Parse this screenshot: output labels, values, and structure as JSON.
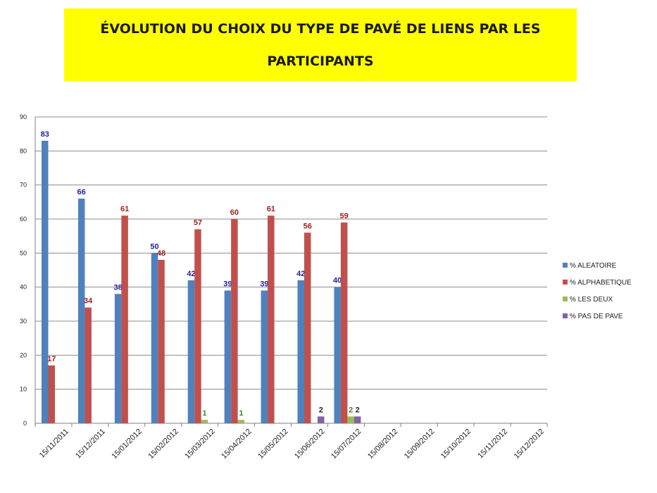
{
  "chart_data": {
    "type": "bar",
    "title": "ÉVOLUTION DU CHOIX DU TYPE DE PAVÉ DE LIENS PAR LES PARTICIPANTS",
    "categories": [
      "15/11/2011",
      "15/12/2011",
      "15/01/2012",
      "15/02/2012",
      "15/03/2012",
      "15/04/2012",
      "15/05/2012",
      "15/06/2012",
      "15/07/2012",
      "15/08/2012",
      "15/09/2012",
      "15/10/2012",
      "15/11/2012",
      "15/12/2012"
    ],
    "ylim": [
      0,
      90
    ],
    "yticks": [
      0,
      10,
      20,
      30,
      40,
      50,
      60,
      70,
      80,
      90
    ],
    "grid": true,
    "legend_position": "right",
    "series": [
      {
        "name": "% ALEATOIRE",
        "color": "#4f81bd",
        "label_color": "#1f1fa0",
        "values": [
          83,
          66,
          38,
          50,
          42,
          39,
          39,
          42,
          40,
          null,
          null,
          null,
          null,
          null
        ],
        "labels": [
          "83",
          "66",
          "38",
          "50",
          "42",
          "39",
          "39",
          "42",
          "40",
          null,
          null,
          null,
          null,
          null
        ]
      },
      {
        "name": "% ALPHABETIQUE",
        "color": "#c0504d",
        "label_color": "#a01f1f",
        "values": [
          17,
          34,
          61,
          48,
          57,
          60,
          61,
          56,
          59,
          null,
          null,
          null,
          null,
          null
        ],
        "labels": [
          "17",
          "34",
          "61",
          "48",
          "57",
          "60",
          "61",
          "56",
          "59",
          null,
          null,
          null,
          null,
          null
        ]
      },
      {
        "name": "%  LES DEUX",
        "color": "#9bbb59",
        "label_color": "#2e8b2e",
        "values": [
          null,
          null,
          null,
          null,
          1,
          1,
          null,
          null,
          2,
          null,
          null,
          null,
          null,
          null
        ],
        "labels": [
          null,
          null,
          null,
          null,
          "1",
          "1",
          null,
          null,
          "2",
          null,
          null,
          null,
          null,
          null
        ]
      },
      {
        "name": "% PAS DE PAVE",
        "color": "#8064a2",
        "label_color": "#222222",
        "values": [
          null,
          null,
          null,
          null,
          null,
          null,
          null,
          2,
          2,
          null,
          null,
          null,
          null,
          null
        ],
        "labels": [
          null,
          null,
          null,
          null,
          null,
          null,
          null,
          "2",
          "2",
          null,
          null,
          null,
          null,
          null
        ]
      }
    ]
  }
}
